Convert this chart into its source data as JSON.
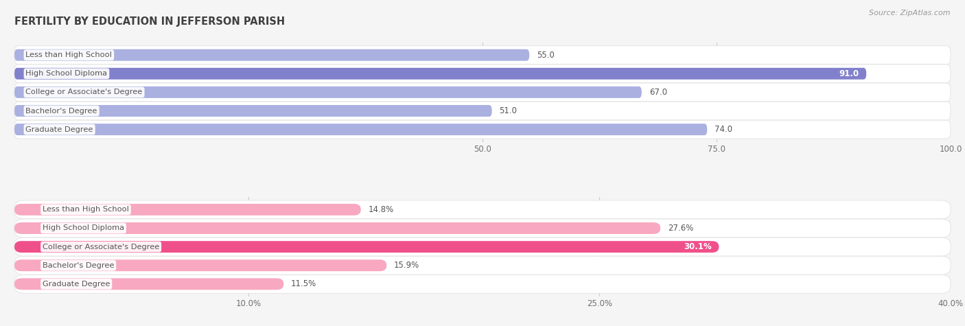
{
  "title": "FERTILITY BY EDUCATION IN JEFFERSON PARISH",
  "source": "Source: ZipAtlas.com",
  "top_section": {
    "categories": [
      "Less than High School",
      "High School Diploma",
      "College or Associate's Degree",
      "Bachelor's Degree",
      "Graduate Degree"
    ],
    "values": [
      55.0,
      91.0,
      67.0,
      51.0,
      74.0
    ],
    "value_labels": [
      "55.0",
      "91.0",
      "67.0",
      "51.0",
      "74.0"
    ],
    "bar_color_strong": "#8080cc",
    "bar_color_light": "#aab0e0",
    "bar_bg_color": "#e8e8f2",
    "xmin": 0,
    "xmax": 100,
    "xticks": [
      50.0,
      75.0,
      100.0
    ],
    "xtick_labels": [
      "50.0",
      "75.0",
      "100.0"
    ]
  },
  "bottom_section": {
    "categories": [
      "Less than High School",
      "High School Diploma",
      "College or Associate's Degree",
      "Bachelor's Degree",
      "Graduate Degree"
    ],
    "values": [
      14.8,
      27.6,
      30.1,
      15.9,
      11.5
    ],
    "value_labels": [
      "14.8%",
      "27.6%",
      "30.1%",
      "15.9%",
      "11.5%"
    ],
    "bar_color_strong": "#f0508a",
    "bar_color_light": "#f8a8c0",
    "bar_bg_color": "#f5e8f0",
    "xmin": 0,
    "xmax": 40,
    "xticks": [
      10.0,
      25.0,
      40.0
    ],
    "xtick_labels": [
      "10.0%",
      "25.0%",
      "40.0%"
    ]
  },
  "page_bg": "#f5f5f5",
  "row_bg": "#ffffff",
  "label_color_dark": "#555555",
  "label_color_white": "#ffffff",
  "title_color": "#404040",
  "source_color": "#999999",
  "grid_color": "#cccccc"
}
